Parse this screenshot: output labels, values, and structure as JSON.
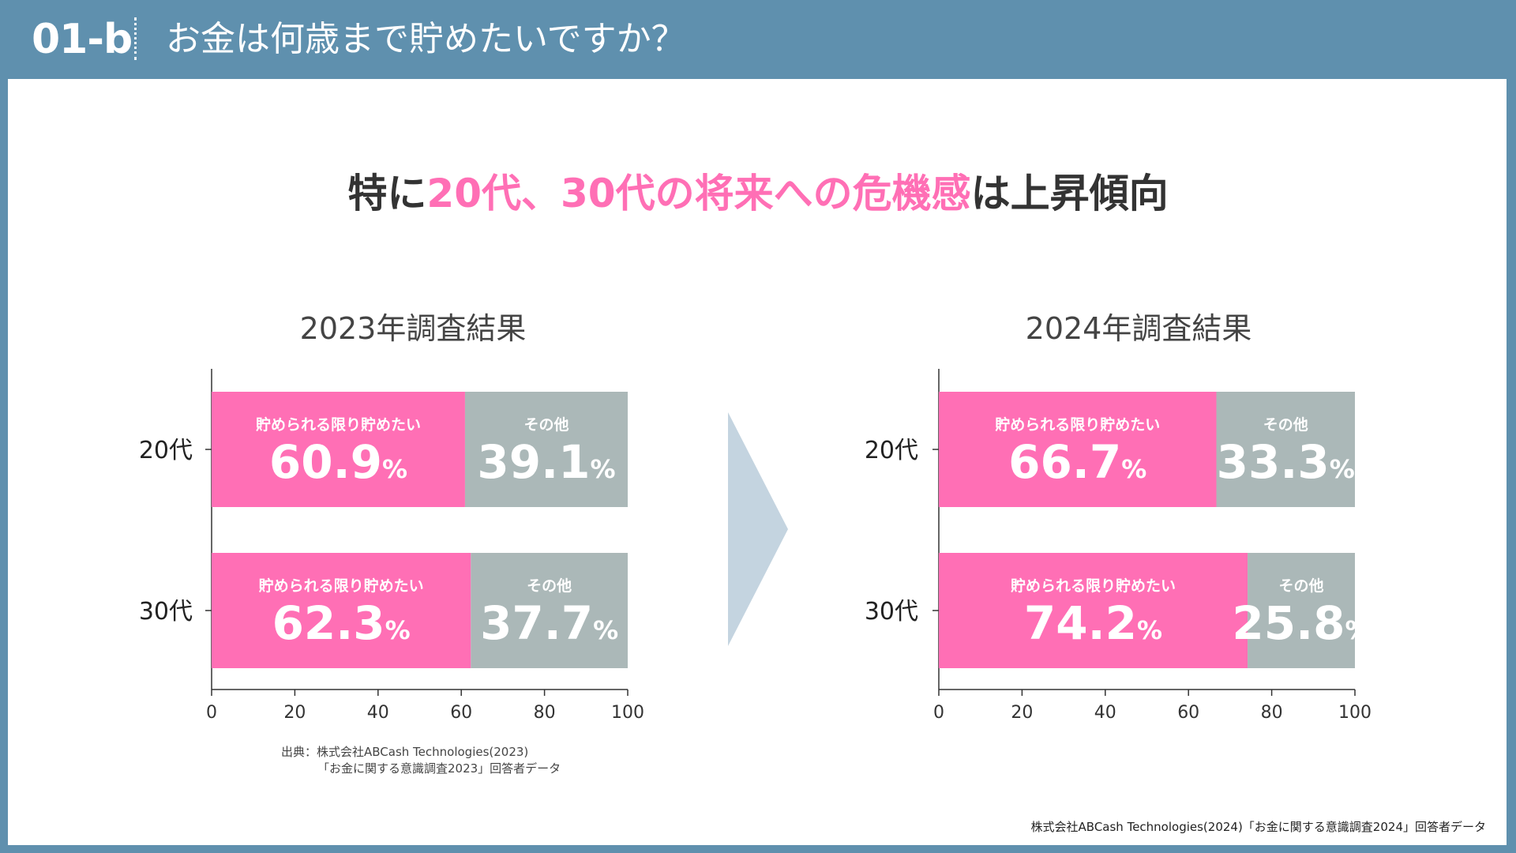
{
  "header": {
    "slide_number": "01-b",
    "title": "お金は何歳まで貯めたいですか？"
  },
  "headline": {
    "prefix": "特に",
    "highlight": "20代、30代の将来への危機感",
    "suffix": "は上昇傾向"
  },
  "colors": {
    "pink": "#ff6fb5",
    "gray": "#abb8b8",
    "header_bg": "#5f90ae",
    "arrow": "#c4d4e0"
  },
  "chart_data": [
    {
      "type": "bar",
      "orientation": "horizontal-stacked",
      "title": "2023年調査結果",
      "categories": [
        "20代",
        "30代"
      ],
      "series": [
        {
          "name": "貯められる限り貯めたい",
          "values": [
            60.9,
            62.3
          ]
        },
        {
          "name": "その他",
          "values": [
            39.1,
            37.7
          ]
        }
      ],
      "xlim": [
        0,
        100
      ],
      "xticks": [
        "0",
        "20",
        "40",
        "60",
        "80",
        "100"
      ],
      "unit": "%"
    },
    {
      "type": "bar",
      "orientation": "horizontal-stacked",
      "title": "2024年調査結果",
      "categories": [
        "20代",
        "30代"
      ],
      "series": [
        {
          "name": "貯められる限り貯めたい",
          "values": [
            66.7,
            74.2
          ]
        },
        {
          "name": "その他",
          "values": [
            33.3,
            25.8
          ]
        }
      ],
      "xlim": [
        0,
        100
      ],
      "xticks": [
        "0",
        "20",
        "40",
        "60",
        "80",
        "100"
      ],
      "unit": "%"
    }
  ],
  "sources": {
    "left_line1": "出典：株式会社ABCash Technologies(2023)",
    "left_line2": "「お金に関する意識調査2023」回答者データ",
    "right": "株式会社ABCash Technologies(2024)「お金に関する意識調査2024」回答者データ"
  }
}
